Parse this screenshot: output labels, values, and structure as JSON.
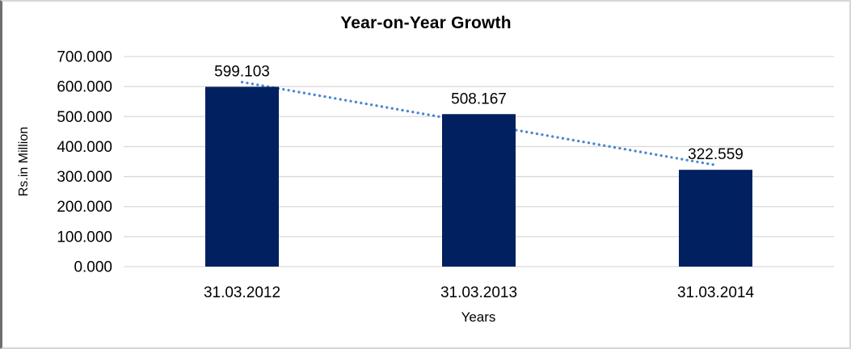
{
  "frame": {
    "background": "#FFFFFF",
    "border_color": "#D6D6D6",
    "border_left_color": "#6F6F6F"
  },
  "chart_data": {
    "type": "bar",
    "title": "Year-on-Year Growth",
    "xlabel": "Years",
    "ylabel": "Rs.in Million",
    "categories": [
      "31.03.2012",
      "31.03.2013",
      "31.03.2014"
    ],
    "values": [
      599.103,
      508.167,
      322.559
    ],
    "data_labels": [
      "599.103",
      "508.167",
      "322.559"
    ],
    "ylim": [
      0,
      700
    ],
    "y_ticks": [
      0,
      100,
      200,
      300,
      400,
      500,
      600,
      700
    ],
    "y_tick_labels": [
      "0.000",
      "100.000",
      "200.000",
      "300.000",
      "400.000",
      "500.000",
      "600.000",
      "700.000"
    ],
    "grid": true,
    "legend": false,
    "trendline": {
      "type": "linear",
      "style": "dotted",
      "color": "#4A86D2",
      "span": "first-to-last-category"
    },
    "colors": {
      "bar": "#002060",
      "gridline": "#D9D9D9",
      "text": "#000000"
    }
  }
}
